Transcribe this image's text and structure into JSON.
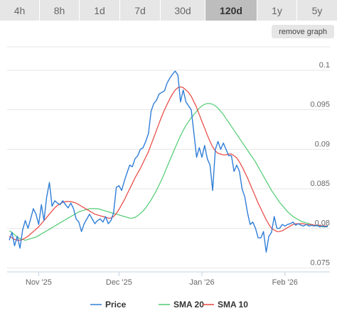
{
  "tabs": [
    {
      "label": "4h",
      "active": false
    },
    {
      "label": "8h",
      "active": false
    },
    {
      "label": "1d",
      "active": false
    },
    {
      "label": "7d",
      "active": false
    },
    {
      "label": "30d",
      "active": false
    },
    {
      "label": "120d",
      "active": true
    },
    {
      "label": "1y",
      "active": false
    },
    {
      "label": "5y",
      "active": false
    }
  ],
  "remove_graph_label": "remove graph",
  "chart_data": {
    "type": "line",
    "title": "",
    "xlabel": "",
    "ylabel": "",
    "ylim": [
      0.0745,
      0.1035
    ],
    "yticks": [
      {
        "value": 0.075,
        "label": "0.075"
      },
      {
        "value": 0.08,
        "label": "0.08"
      },
      {
        "value": 0.085,
        "label": "0.085"
      },
      {
        "value": 0.09,
        "label": "0.09"
      },
      {
        "value": 0.095,
        "label": "0.095"
      },
      {
        "value": 0.1,
        "label": "0.1"
      }
    ],
    "xticks": [
      "Nov '25",
      "Dec '25",
      "Jan '26",
      "Feb '26"
    ],
    "x": [
      "Oct 21",
      "Oct 22",
      "Oct 23",
      "Oct 24",
      "Oct 25",
      "Oct 26",
      "Oct 27",
      "Oct 28",
      "Oct 29",
      "Oct 30",
      "Oct 31",
      "Nov 1",
      "Nov 2",
      "Nov 3",
      "Nov 4",
      "Nov 5",
      "Nov 6",
      "Nov 7",
      "Nov 8",
      "Nov 9",
      "Nov 10",
      "Nov 11",
      "Nov 12",
      "Nov 13",
      "Nov 14",
      "Nov 15",
      "Nov 16",
      "Nov 17",
      "Nov 18",
      "Nov 19",
      "Nov 20",
      "Nov 21",
      "Nov 22",
      "Nov 23",
      "Nov 24",
      "Nov 25",
      "Nov 26",
      "Nov 27",
      "Nov 28",
      "Nov 29",
      "Nov 30",
      "Dec 1",
      "Dec 2",
      "Dec 3",
      "Dec 4",
      "Dec 5",
      "Dec 6",
      "Dec 7",
      "Dec 8",
      "Dec 9",
      "Dec 10",
      "Dec 11",
      "Dec 12",
      "Dec 13",
      "Dec 14",
      "Dec 15",
      "Dec 16",
      "Dec 17",
      "Dec 18",
      "Dec 19",
      "Dec 20",
      "Dec 21",
      "Dec 22",
      "Dec 23",
      "Dec 24",
      "Dec 25",
      "Dec 26",
      "Dec 27",
      "Dec 28",
      "Dec 29",
      "Dec 30",
      "Dec 31",
      "Jan 1",
      "Jan 2",
      "Jan 3",
      "Jan 4",
      "Jan 5",
      "Jan 6",
      "Jan 7",
      "Jan 8",
      "Jan 9",
      "Jan 10",
      "Jan 11",
      "Jan 12",
      "Jan 13",
      "Jan 14",
      "Jan 15",
      "Jan 16",
      "Jan 17",
      "Jan 18",
      "Jan 19",
      "Jan 20",
      "Jan 21",
      "Jan 22",
      "Jan 23",
      "Jan 24",
      "Jan 25",
      "Jan 26",
      "Jan 27",
      "Jan 28",
      "Jan 29",
      "Jan 30",
      "Jan 31",
      "Feb 1",
      "Feb 2",
      "Feb 3",
      "Feb 4",
      "Feb 5",
      "Feb 6",
      "Feb 7",
      "Feb 8",
      "Feb 9",
      "Feb 10",
      "Feb 11",
      "Feb 12",
      "Feb 13",
      "Feb 14",
      "Feb 15",
      "Feb 16",
      "Feb 17"
    ],
    "series": [
      {
        "name": "Price",
        "color": "#2f7ed8",
        "values": [
          0.0785,
          0.0795,
          0.0778,
          0.079,
          0.0775,
          0.0798,
          0.081,
          0.08,
          0.0812,
          0.0825,
          0.0818,
          0.0805,
          0.083,
          0.081,
          0.084,
          0.0858,
          0.0828,
          0.0835,
          0.0832,
          0.083,
          0.0835,
          0.083,
          0.0826,
          0.0832,
          0.0825,
          0.0812,
          0.0808,
          0.0796,
          0.0806,
          0.0812,
          0.0818,
          0.0812,
          0.0806,
          0.081,
          0.0812,
          0.0808,
          0.0815,
          0.0806,
          0.081,
          0.082,
          0.0852,
          0.0854,
          0.0848,
          0.086,
          0.087,
          0.088,
          0.0878,
          0.0888,
          0.0892,
          0.09,
          0.0902,
          0.091,
          0.092,
          0.0948,
          0.0958,
          0.0962,
          0.097,
          0.0972,
          0.0974,
          0.0984,
          0.099,
          0.0995,
          0.0999,
          0.0994,
          0.096,
          0.0975,
          0.096,
          0.0955,
          0.095,
          0.092,
          0.089,
          0.0902,
          0.089,
          0.0905,
          0.0888,
          0.088,
          0.0848,
          0.09,
          0.091,
          0.09,
          0.0908,
          0.09,
          0.0892,
          0.0892,
          0.0872,
          0.088,
          0.0872,
          0.085,
          0.084,
          0.082,
          0.0805,
          0.0808,
          0.08,
          0.0788,
          0.0788,
          0.0796,
          0.077,
          0.079,
          0.0795,
          0.0815,
          0.08,
          0.08,
          0.0805,
          0.0803,
          0.0805,
          0.0806,
          0.0808,
          0.0804,
          0.0806,
          0.0804,
          0.0803,
          0.0805,
          0.0803,
          0.0804,
          0.0803,
          0.0804,
          0.0802,
          0.0803,
          0.0802,
          0.0803
        ]
      },
      {
        "name": "SMA 20",
        "color": "#4ecb71",
        "values": [
          0.0797,
          0.0795,
          0.0792,
          0.0789,
          0.0787,
          0.0786,
          0.0785,
          0.0786,
          0.0787,
          0.0788,
          0.0789,
          0.0791,
          0.0793,
          0.0795,
          0.0797,
          0.0799,
          0.0801,
          0.0803,
          0.0805,
          0.0807,
          0.0809,
          0.0811,
          0.0813,
          0.0815,
          0.0817,
          0.0819,
          0.0821,
          0.0822,
          0.0823,
          0.0824,
          0.0825,
          0.0825,
          0.0825,
          0.0825,
          0.0824,
          0.0823,
          0.0822,
          0.0821,
          0.082,
          0.0819,
          0.0818,
          0.0817,
          0.0816,
          0.0815,
          0.0814,
          0.0813,
          0.0813,
          0.0814,
          0.0816,
          0.0819,
          0.0822,
          0.0826,
          0.0831,
          0.0836,
          0.0842,
          0.0848,
          0.0855,
          0.0862,
          0.087,
          0.0878,
          0.0886,
          0.0894,
          0.0902,
          0.091,
          0.0917,
          0.0924,
          0.093,
          0.0935,
          0.094,
          0.0944,
          0.0948,
          0.0952,
          0.0955,
          0.0957,
          0.0958,
          0.0958,
          0.0957,
          0.0955,
          0.0952,
          0.0948,
          0.0944,
          0.0939,
          0.0934,
          0.0929,
          0.0924,
          0.0919,
          0.0914,
          0.0909,
          0.0904,
          0.0899,
          0.0894,
          0.0889,
          0.0884,
          0.0878,
          0.0872,
          0.0866,
          0.086,
          0.0854,
          0.0848,
          0.0843,
          0.0838,
          0.0833,
          0.0829,
          0.0825,
          0.0821,
          0.0818,
          0.0815,
          0.0813,
          0.0811,
          0.0809,
          0.0808,
          0.0807,
          0.0806,
          0.0805,
          0.0804,
          0.0803,
          0.0803,
          0.0802,
          0.0802,
          0.0802
        ]
      },
      {
        "name": "SMA 10",
        "color": "#e8423e",
        "values": [
          0.079,
          0.0788,
          0.0786,
          0.0785,
          0.0785,
          0.0786,
          0.0788,
          0.079,
          0.0793,
          0.0796,
          0.0799,
          0.0802,
          0.0806,
          0.081,
          0.0814,
          0.0818,
          0.0822,
          0.0826,
          0.0829,
          0.0831,
          0.0833,
          0.0834,
          0.0834,
          0.0834,
          0.0833,
          0.0832,
          0.083,
          0.0828,
          0.0826,
          0.0824,
          0.0822,
          0.082,
          0.0818,
          0.0817,
          0.0816,
          0.0815,
          0.0814,
          0.0813,
          0.0813,
          0.0815,
          0.0819,
          0.0824,
          0.083,
          0.0836,
          0.0843,
          0.085,
          0.0857,
          0.0864,
          0.087,
          0.0876,
          0.0883,
          0.089,
          0.0897,
          0.0906,
          0.0915,
          0.0924,
          0.0933,
          0.0942,
          0.095,
          0.0957,
          0.0964,
          0.097,
          0.0975,
          0.0978,
          0.0979,
          0.0978,
          0.0975,
          0.0972,
          0.0967,
          0.096,
          0.0953,
          0.0944,
          0.0935,
          0.0927,
          0.0918,
          0.091,
          0.0903,
          0.0898,
          0.0895,
          0.0894,
          0.0893,
          0.0893,
          0.0894,
          0.0894,
          0.0892,
          0.0889,
          0.0884,
          0.0878,
          0.0871,
          0.0864,
          0.0856,
          0.0848,
          0.084,
          0.0832,
          0.0825,
          0.0818,
          0.0811,
          0.0805,
          0.08,
          0.0798,
          0.0796,
          0.0796,
          0.0797,
          0.0799,
          0.0801,
          0.0803,
          0.0805,
          0.0806,
          0.0806,
          0.0806,
          0.0806,
          0.0805,
          0.0805,
          0.0805,
          0.0804,
          0.0804,
          0.0804,
          0.0803,
          0.0803,
          0.0803
        ]
      }
    ],
    "legend_position": "bottom",
    "grid": "horizontal"
  }
}
